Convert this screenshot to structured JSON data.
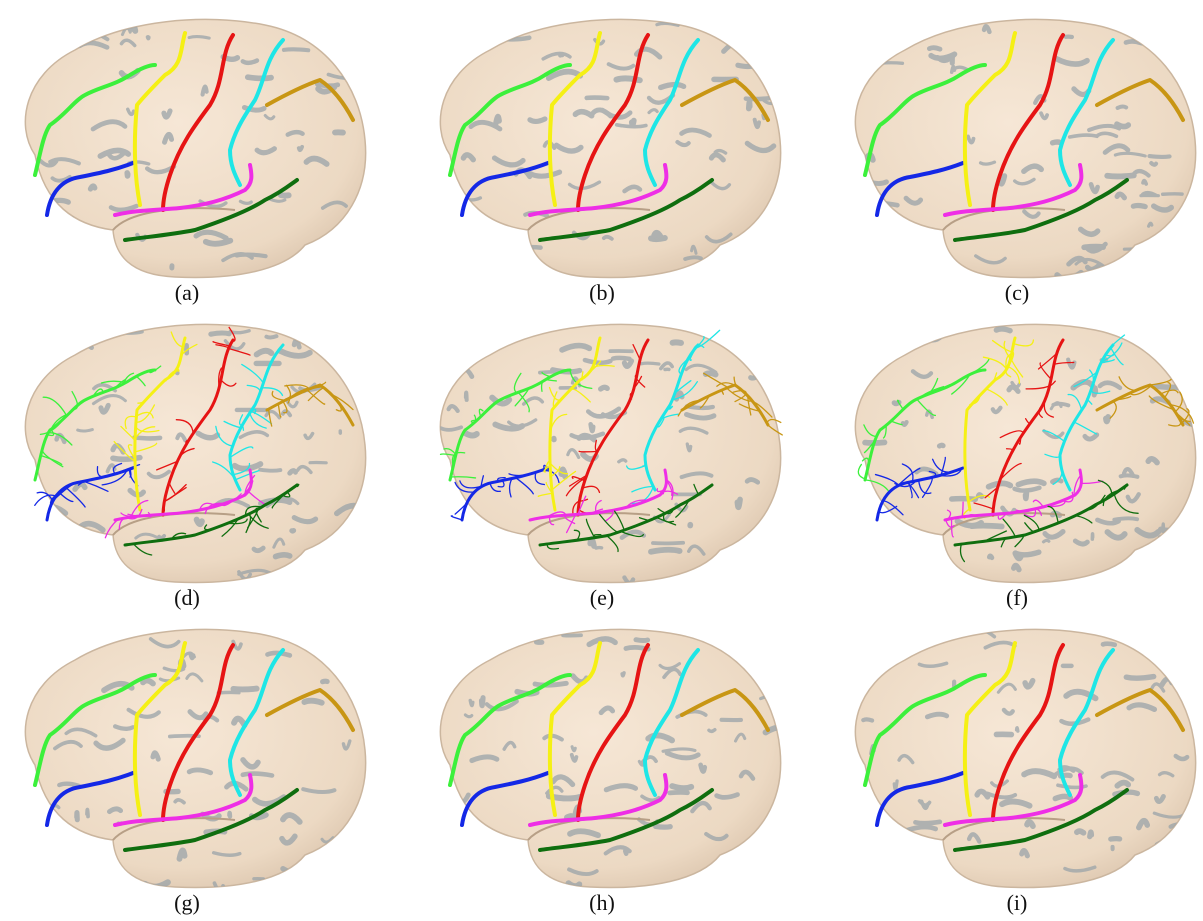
{
  "figure": {
    "captions": [
      "(a)",
      "(b)",
      "(c)",
      "(d)",
      "(e)",
      "(f)",
      "(g)",
      "(h)",
      "(i)"
    ],
    "sulcus_colors": {
      "superior_frontal": "#3cf03c",
      "inferior_frontal": "#1428e6",
      "precentral": "#f5f014",
      "central": "#e61414",
      "postcentral": "#1ee6e6",
      "lateral_fissure": "#ee2ee6",
      "superior_temporal": "#0f6e0f",
      "intraparietal": "#c89614"
    },
    "brain_surface_color": "#ecd9c3",
    "sulcus_shadow_color": "#9aa3a8",
    "panels": [
      {
        "id": "a",
        "style": "single-curves"
      },
      {
        "id": "b",
        "style": "single-curves"
      },
      {
        "id": "c",
        "style": "single-curves"
      },
      {
        "id": "d",
        "style": "curve-networks"
      },
      {
        "id": "e",
        "style": "curve-networks"
      },
      {
        "id": "f",
        "style": "curve-networks"
      },
      {
        "id": "g",
        "style": "single-curves"
      },
      {
        "id": "h",
        "style": "single-curves"
      },
      {
        "id": "i",
        "style": "single-curves"
      }
    ]
  }
}
